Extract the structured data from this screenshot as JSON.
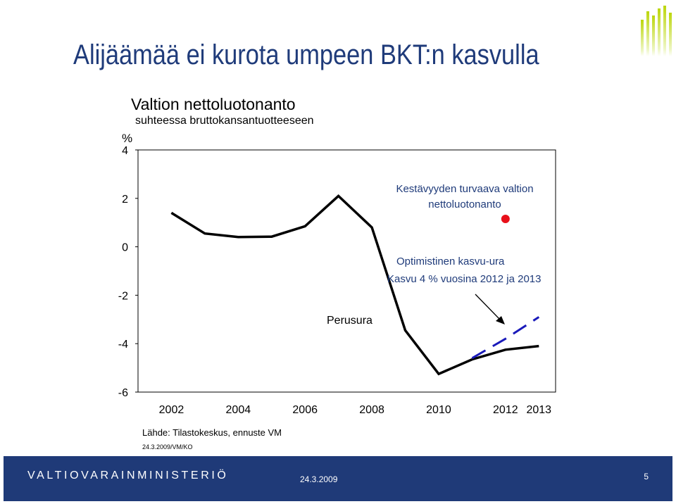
{
  "slide": {
    "title": "Alijäämää ei kurota umpeen BKT:n kasvulla",
    "source": "Lähde: Tilastokeskus, ennuste VM",
    "reference": "24.3.2009/VM/KO"
  },
  "footer": {
    "ministry": "VALTIOVARAINMINISTERIÖ",
    "date": "24.3.2009",
    "page": "5"
  },
  "colors": {
    "title": "#1f3b7a",
    "annotation": "#1f3b7a",
    "baseline_line": "#000000",
    "optimistic_line": "#1a1aba",
    "target_marker": "#e8101a",
    "footer_bg": "#1f3a78",
    "logo_bars": "#bcd60c"
  },
  "chart_data": {
    "type": "line",
    "title": "Valtion nettoluotonanto",
    "subtitle": "suhteessa bruttokansantuotteeseen",
    "ylabel": "%",
    "ylim": [
      -6,
      4
    ],
    "yticks": [
      4,
      2,
      0,
      -2,
      -4,
      -6
    ],
    "xlim": [
      2001,
      2013.5
    ],
    "xticks": [
      "2002",
      "2004",
      "2006",
      "2008",
      "2010",
      "2012",
      "2013"
    ],
    "series": [
      {
        "name": "Perusura",
        "style": "solid",
        "points": [
          {
            "x": 2002,
            "y": 1.4
          },
          {
            "x": 2003,
            "y": 0.55
          },
          {
            "x": 2004,
            "y": 0.4
          },
          {
            "x": 2005,
            "y": 0.42
          },
          {
            "x": 2006,
            "y": 0.85
          },
          {
            "x": 2007,
            "y": 2.1
          },
          {
            "x": 2008,
            "y": 0.8
          },
          {
            "x": 2009,
            "y": -3.45
          },
          {
            "x": 2010,
            "y": -5.25
          },
          {
            "x": 2011,
            "y": -4.65
          },
          {
            "x": 2012,
            "y": -4.25
          },
          {
            "x": 2013,
            "y": -4.1
          }
        ]
      },
      {
        "name": "Optimistinen kasvu-ura",
        "style": "dashed",
        "points": [
          {
            "x": 2011,
            "y": -4.6
          },
          {
            "x": 2012,
            "y": -3.8
          },
          {
            "x": 2013,
            "y": -2.9
          }
        ]
      }
    ],
    "target": {
      "label": "Kestävyyden turvaava valtion nettoluotonanto",
      "point": {
        "x": 2012,
        "y": 1.15
      }
    },
    "annotations": {
      "baseline_label": "Perusura",
      "optimistic_title": "Optimistinen kasvu-ura",
      "optimistic_detail": "Kasvu  4 % vuosina 2012 ja 2013"
    }
  }
}
